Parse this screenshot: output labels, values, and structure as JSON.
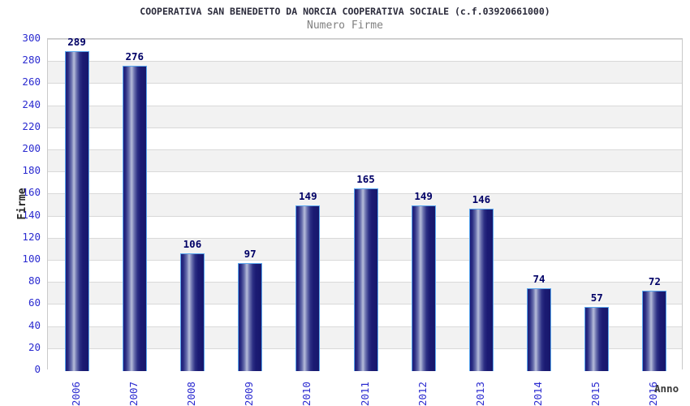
{
  "title": "COOPERATIVA SAN BENEDETTO DA NORCIA COOPERATIVA SOCIALE (c.f.03920661000)",
  "subtitle": "Numero Firme",
  "chart_data": {
    "type": "bar",
    "title": "COOPERATIVA SAN BENEDETTO DA NORCIA COOPERATIVA SOCIALE (c.f.03920661000)",
    "subtitle": "Numero Firme",
    "categories": [
      "2006",
      "2007",
      "2008",
      "2009",
      "2010",
      "2011",
      "2012",
      "2013",
      "2014",
      "2015",
      "2016"
    ],
    "values": [
      289,
      276,
      106,
      97,
      149,
      165,
      149,
      146,
      74,
      57,
      72
    ],
    "xlabel": "Anno",
    "ylabel": "Firme",
    "ylim": [
      0,
      300
    ],
    "ytick_step": 20,
    "grid": true,
    "bands_alternating": true,
    "value_labels_shown": true,
    "legend_position": "none"
  },
  "colors": {
    "title_text": "#2b2b3b",
    "subtitle_text": "#808080",
    "tick_label": "#2b2bd0",
    "value_label": "#000066",
    "bar_border": "#5aa7ee",
    "bar_dark": "#1c1c7a",
    "bar_light": "#b7bdda",
    "grid_line": "#d9d9d9",
    "band_fill": "#f2f2f2",
    "plot_border": "#c9c9c9",
    "axis_title_text": "#262626"
  }
}
